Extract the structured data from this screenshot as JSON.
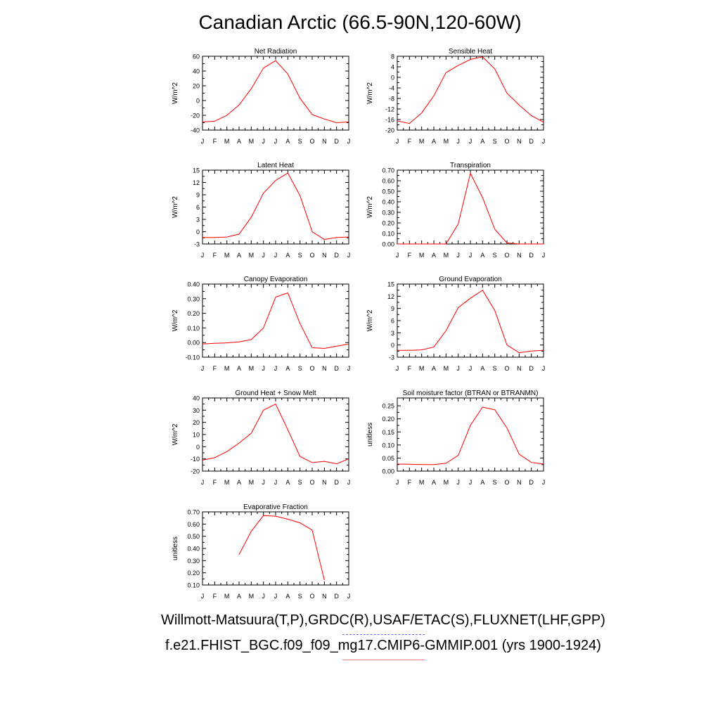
{
  "title": "Canadian Arctic (66.5-90N,120-60W)",
  "captions": {
    "observations": "Willmott-Matsuura(T,P),GRDC(R),USAF/ETAC(S),FLUXNET(LHF,GPP)",
    "model": "f.e21.FHIST_BGC.f09_f09_mg17.CMIP6-GMMIP.001 (yrs 1900-1924)"
  },
  "colors": {
    "series": "#ff0000",
    "obs_legend": "#6a6af0",
    "model_legend": "#f08080"
  },
  "chart_data": [
    {
      "type": "line",
      "title": "Net Radiation",
      "ylabel": "W/m^2",
      "x": [
        "J",
        "F",
        "M",
        "A",
        "M",
        "J",
        "J",
        "A",
        "S",
        "O",
        "N",
        "D",
        "J"
      ],
      "yticks": [
        -40,
        -20,
        0,
        20,
        40,
        60
      ],
      "ylim": [
        -40,
        60
      ],
      "series": [
        {
          "values": [
            -29,
            -28,
            -20,
            -6,
            16,
            44,
            54,
            36,
            3,
            -19,
            -25,
            -30,
            -29
          ]
        }
      ]
    },
    {
      "type": "line",
      "title": "Sensible Heat",
      "ylabel": "W/m^2",
      "x": [
        "J",
        "F",
        "M",
        "A",
        "M",
        "J",
        "J",
        "A",
        "S",
        "O",
        "N",
        "D",
        "J"
      ],
      "yticks": [
        -20,
        -16,
        -12,
        -8,
        -4,
        0,
        4,
        8
      ],
      "ylim": [
        -20,
        8
      ],
      "series": [
        {
          "values": [
            -16.5,
            -17.5,
            -13.5,
            -7,
            1.8,
            4.5,
            6.8,
            7.8,
            3.2,
            -6,
            -10.5,
            -14.5,
            -17
          ]
        }
      ]
    },
    {
      "type": "line",
      "title": "Latent Heat",
      "ylabel": "W/m^2",
      "x": [
        "J",
        "F",
        "M",
        "A",
        "M",
        "J",
        "J",
        "A",
        "S",
        "O",
        "N",
        "D",
        "J"
      ],
      "yticks": [
        -3,
        0,
        3,
        6,
        9,
        12,
        15
      ],
      "ylim": [
        -3,
        15
      ],
      "series": [
        {
          "values": [
            -1.4,
            -1.4,
            -1.3,
            -0.6,
            3.5,
            9.4,
            12.5,
            14.3,
            8.8,
            0,
            -1.9,
            -1.4,
            -1.3
          ]
        }
      ]
    },
    {
      "type": "line",
      "title": "Transpiration",
      "ylabel": "W/m^2",
      "x": [
        "J",
        "F",
        "M",
        "A",
        "M",
        "J",
        "J",
        "A",
        "S",
        "O",
        "N",
        "D",
        "J"
      ],
      "yticks": [
        "0.00",
        "0.10",
        "0.20",
        "0.30",
        "0.40",
        "0.50",
        "0.60",
        "0.70"
      ],
      "ylim": [
        0,
        0.7
      ],
      "series": [
        {
          "values": [
            0,
            0,
            0,
            0,
            0,
            0.19,
            0.67,
            0.44,
            0.14,
            0.01,
            0,
            0,
            0
          ]
        }
      ]
    },
    {
      "type": "line",
      "title": "Canopy Evaporation",
      "ylabel": "W/m^2",
      "x": [
        "J",
        "F",
        "M",
        "A",
        "M",
        "J",
        "J",
        "A",
        "S",
        "O",
        "N",
        "D",
        "J"
      ],
      "yticks": [
        "-0.10",
        "0.00",
        "0.10",
        "0.20",
        "0.30",
        "0.40"
      ],
      "ylim": [
        -0.1,
        0.4
      ],
      "series": [
        {
          "values": [
            -0.01,
            -0.005,
            -0.002,
            0.005,
            0.02,
            0.1,
            0.31,
            0.34,
            0.13,
            -0.035,
            -0.04,
            -0.025,
            -0.01
          ]
        }
      ]
    },
    {
      "type": "line",
      "title": "Ground Evaporation",
      "ylabel": "W/m^2",
      "x": [
        "J",
        "F",
        "M",
        "A",
        "M",
        "J",
        "J",
        "A",
        "S",
        "O",
        "N",
        "D",
        "J"
      ],
      "yticks": [
        -3,
        0,
        3,
        6,
        9,
        12,
        15
      ],
      "ylim": [
        -3,
        15
      ],
      "series": [
        {
          "values": [
            -1.3,
            -1.3,
            -1.2,
            -0.5,
            3.5,
            9.2,
            11.5,
            13.5,
            8.5,
            0,
            -1.9,
            -1.5,
            -1.3
          ]
        }
      ]
    },
    {
      "type": "line",
      "title": "Ground Heat + Snow Melt",
      "ylabel": "W/m^2",
      "x": [
        "J",
        "F",
        "M",
        "A",
        "M",
        "J",
        "J",
        "A",
        "S",
        "O",
        "N",
        "D",
        "J"
      ],
      "yticks": [
        -20,
        -10,
        0,
        10,
        20,
        30,
        40
      ],
      "ylim": [
        -20,
        40
      ],
      "series": [
        {
          "values": [
            -11,
            -9,
            -4,
            3,
            11,
            30,
            35,
            14,
            -8,
            -13,
            -12,
            -14,
            -10
          ]
        }
      ]
    },
    {
      "type": "line",
      "title": "Soil moisture factor (BTRAN or BTRANMN)",
      "ylabel": "unitless",
      "x": [
        "J",
        "F",
        "M",
        "A",
        "M",
        "J",
        "J",
        "A",
        "S",
        "O",
        "N",
        "D",
        "J"
      ],
      "yticks": [
        "0.00",
        "0.05",
        "0.10",
        "0.15",
        "0.20",
        "0.25"
      ],
      "ylim": [
        0,
        0.28
      ],
      "series": [
        {
          "values": [
            0.027,
            0.026,
            0.025,
            0.025,
            0.03,
            0.06,
            0.175,
            0.245,
            0.235,
            0.165,
            0.065,
            0.033,
            0.027
          ]
        }
      ]
    },
    {
      "type": "line",
      "title": "Evaporative Fraction",
      "ylabel": "unitless",
      "x": [
        "J",
        "F",
        "M",
        "A",
        "M",
        "J",
        "J",
        "A",
        "S",
        "O",
        "N",
        "D",
        "J"
      ],
      "yticks": [
        "0.10",
        "0.20",
        "0.30",
        "0.40",
        "0.50",
        "0.60",
        "0.70"
      ],
      "ylim": [
        0.1,
        0.7
      ],
      "series": [
        {
          "values": [
            null,
            null,
            null,
            0.35,
            0.54,
            0.67,
            0.665,
            0.64,
            0.61,
            0.55,
            0.14,
            null,
            null
          ]
        }
      ]
    }
  ]
}
